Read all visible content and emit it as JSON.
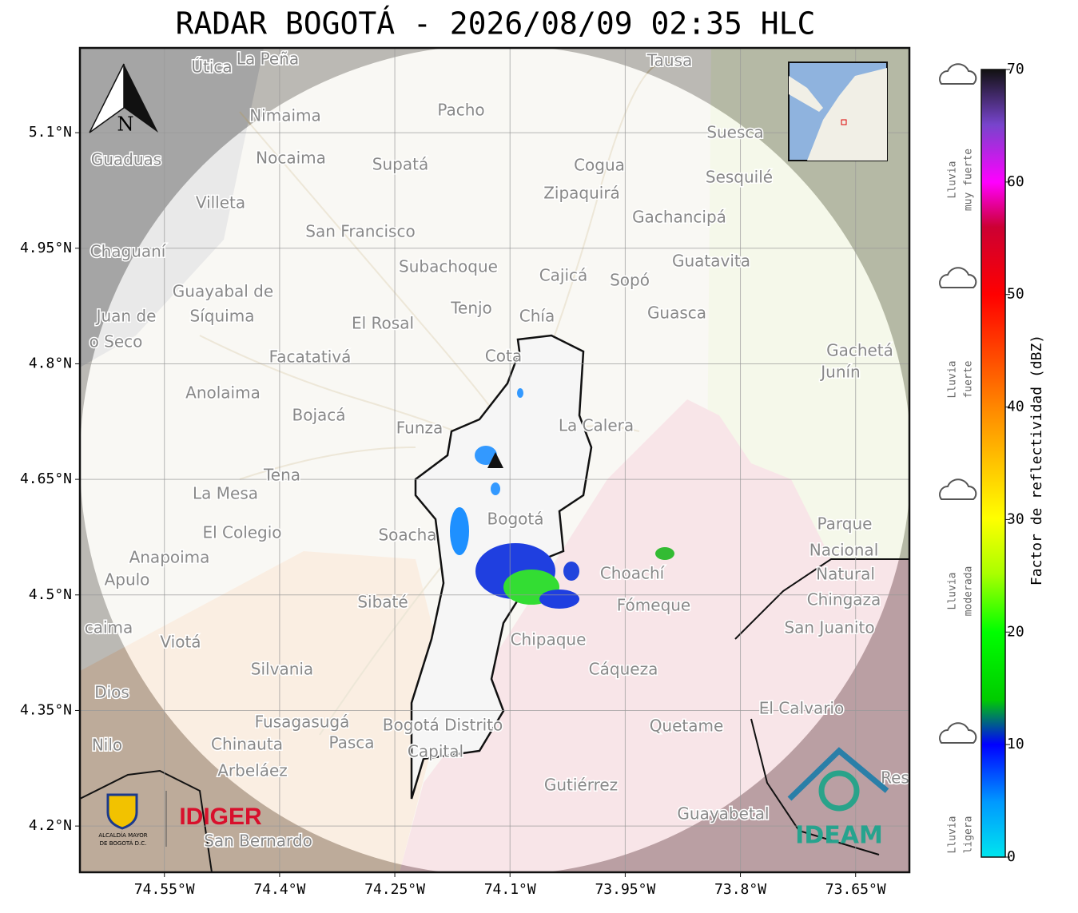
{
  "title": "RADAR BOGOTÁ - 2026/08/09 02:35 HLC",
  "map": {
    "lonlim": [
      -74.66,
      -73.58
    ],
    "latlim": [
      4.14,
      5.21
    ],
    "lon_ticks": [
      {
        "value": -74.55,
        "label": "74.55°W"
      },
      {
        "value": -74.4,
        "label": "74.4°W"
      },
      {
        "value": -74.25,
        "label": "74.25°W"
      },
      {
        "value": -74.1,
        "label": "74.1°W"
      },
      {
        "value": -73.95,
        "label": "73.95°W"
      },
      {
        "value": -73.8,
        "label": "73.8°W"
      },
      {
        "value": -73.65,
        "label": "73.65°W"
      }
    ],
    "lat_ticks": [
      {
        "value": 5.1,
        "label": "5.1°N"
      },
      {
        "value": 4.95,
        "label": "4.95°N"
      },
      {
        "value": 4.8,
        "label": "4.8°N"
      },
      {
        "value": 4.65,
        "label": "4.65°N"
      },
      {
        "value": 4.5,
        "label": "4.5°N"
      },
      {
        "value": 4.35,
        "label": "4.35°N"
      },
      {
        "value": 4.2,
        "label": "4.2°N"
      }
    ],
    "north": "N",
    "places": [
      "Útica",
      "La Peña",
      "Tausa",
      "Pacho",
      "Nimaima",
      "Suesca",
      "Guaduas",
      "Nocaima",
      "Supatá",
      "Cogua",
      "Sesquilé",
      "Zipaquirá",
      "Villeta",
      "Gachancipá",
      "San Francisco",
      "Chaguaní",
      "Guatavita",
      "Subachoque",
      "Cajicá",
      "Sopó",
      "Guayabal de",
      "Síquima",
      "Tenjo",
      "Chía",
      "Guasca",
      "Juan de",
      "El Rosal",
      "o Seco",
      "Gachetá",
      "Facatativá",
      "Cota",
      "Junín",
      "Anolaima",
      "Bojacá",
      "Funza",
      "La Calera",
      "Tena",
      "La Mesa",
      "Soacha",
      "Bogotá",
      "Parque",
      "El Colegio",
      "Nacional",
      "Anapoima",
      "Apulo",
      "Choachí",
      "Natural",
      "Chingaza",
      "Sibaté",
      "Fómeque",
      "San Juanito",
      "caima",
      "Viotá",
      "Chipaque",
      "Silvania",
      "Cáqueza",
      "Dios",
      "El Calvario",
      "Fusagasugá",
      "Bogotá Distrito",
      "Quetame",
      "Nilo",
      "Chinauta",
      "Pasca",
      "Capital",
      "Arbeláez",
      "Gutiérrez",
      "Res",
      "Guayabetal",
      "San Bernardo"
    ]
  },
  "logos": {
    "alcaldia": [
      "ALCALDÍA MAYOR",
      "DE BOGOTÁ D.C."
    ],
    "idiger": "IDIGER",
    "ideam": "IDEAM"
  },
  "colorbar": {
    "lim": [
      0,
      70
    ],
    "ticks": [
      0,
      10,
      20,
      30,
      40,
      50,
      60,
      70
    ],
    "label": "Factor de reflectividad (dBZ)"
  },
  "rain_levels": [
    [
      "Lluvia",
      "muy fuerte"
    ],
    [
      "Lluvia",
      "fuerte"
    ],
    [
      "Lluvia",
      "moderada"
    ],
    [
      "Lluvia",
      "ligera"
    ]
  ]
}
